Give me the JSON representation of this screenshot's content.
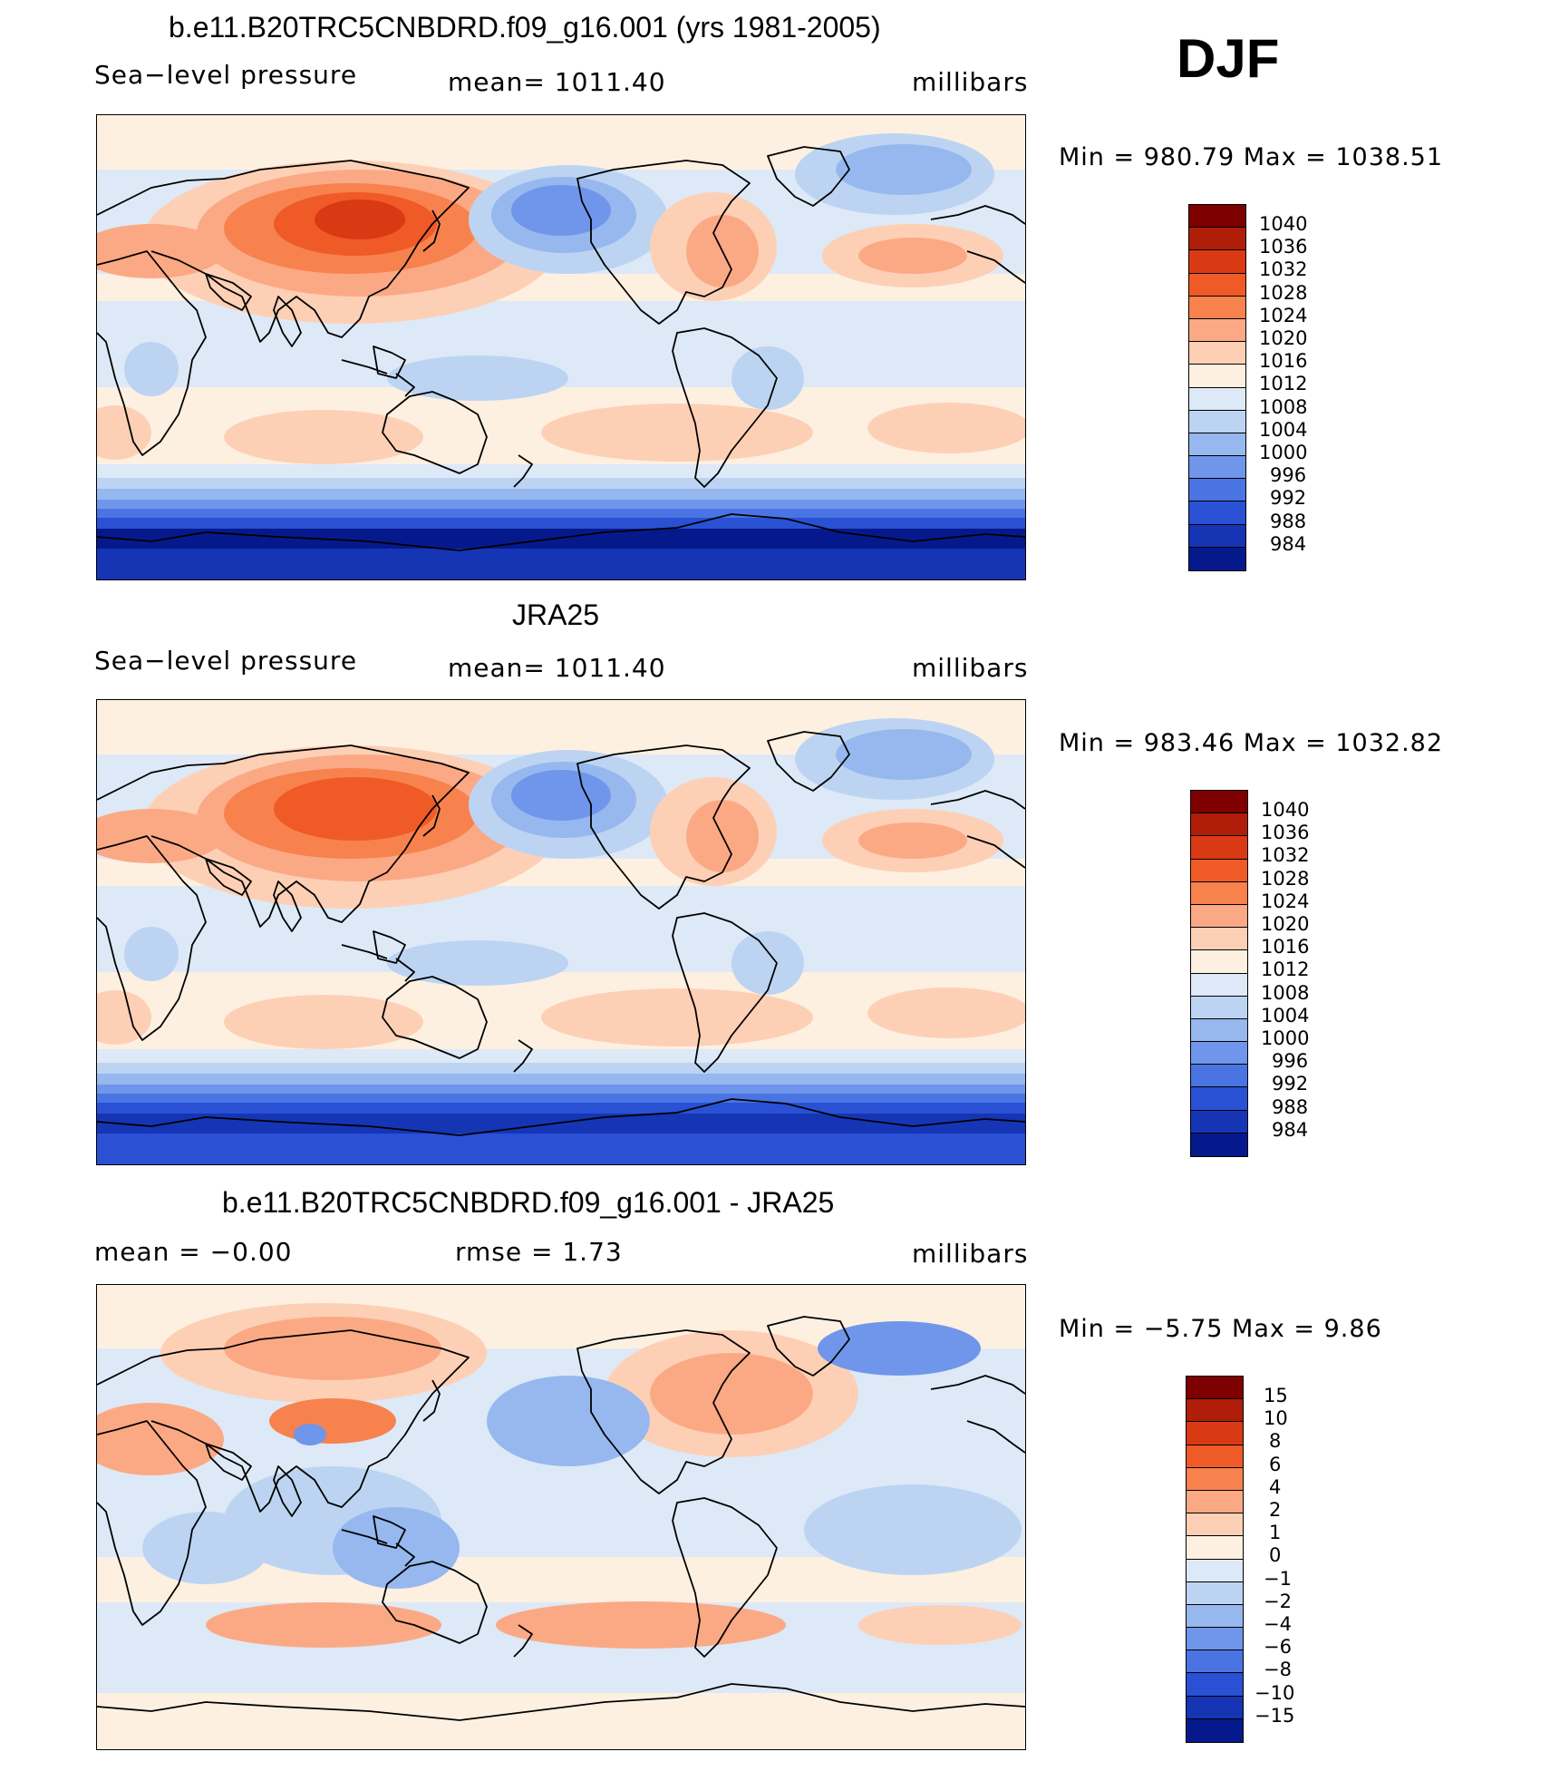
{
  "season": "DJF",
  "panels": [
    {
      "title": "b.e11.B20TRC5CNBDRD.f09_g16.001 (yrs 1981-2005)",
      "left": "Sea−level pressure",
      "center": "mean=  1011.40",
      "right": "millibars",
      "minmax": "Min  =  980.79  Max  =  1038.51",
      "colorbar": [
        "1040",
        "1036",
        "1032",
        "1028",
        "1024",
        "1020",
        "1016",
        "1012",
        "1008",
        "1004",
        "1000",
        "996",
        "992",
        "988",
        "984"
      ]
    },
    {
      "title": "JRA25",
      "left": "Sea−level pressure",
      "center": "mean=  1011.40",
      "right": "millibars",
      "minmax": "Min  =  983.46  Max  =  1032.82",
      "colorbar": [
        "1040",
        "1036",
        "1032",
        "1028",
        "1024",
        "1020",
        "1016",
        "1012",
        "1008",
        "1004",
        "1000",
        "996",
        "992",
        "988",
        "984"
      ]
    },
    {
      "title": "b.e11.B20TRC5CNBDRD.f09_g16.001 - JRA25",
      "left": "mean  =     −0.00",
      "center": "rmse  =      1.73",
      "right": "millibars",
      "minmax": "Min  =    −5.75  Max  =      9.86",
      "colorbar": [
        "15",
        "10",
        "8",
        "6",
        "4",
        "2",
        "1",
        "0",
        "−1",
        "−2",
        "−4",
        "−6",
        "−8",
        "−10",
        "−15"
      ]
    }
  ],
  "colors": {
    "levels": [
      "#7f0000",
      "#b01e0a",
      "#d93a14",
      "#ef5a27",
      "#f7824d",
      "#fba985",
      "#fdd0b6",
      "#fdf0e1",
      "#dde9f6",
      "#bcd4f2",
      "#96b8ef",
      "#6f96ea",
      "#4a74e2",
      "#2a50d4",
      "#1535b5",
      "#06198c"
    ],
    "coast": "#000000"
  }
}
